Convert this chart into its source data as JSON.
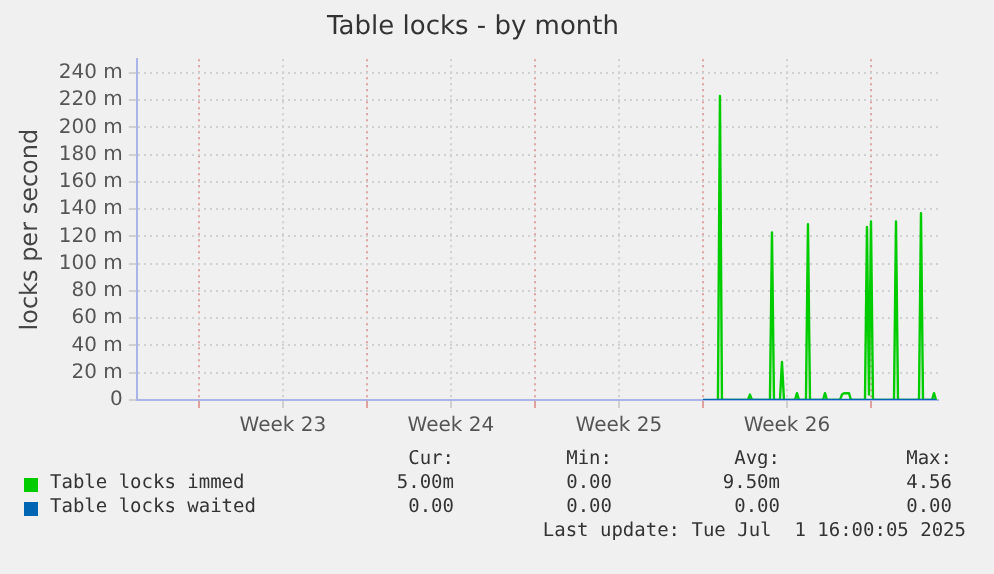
{
  "chart_data": {
    "type": "line",
    "title": "Table locks - by month",
    "ylabel": "locks per second",
    "xlim": [
      "2025-05-30T10:00",
      "2025-07-02T19:00"
    ],
    "xticks": [
      {
        "value": "2025-06-02",
        "label": null
      },
      {
        "value": "2025-06-05T12:00",
        "label": "Week 23"
      },
      {
        "value": "2025-06-09",
        "label": null
      },
      {
        "value": "2025-06-12T12:00",
        "label": "Week 24"
      },
      {
        "value": "2025-06-16",
        "label": null
      },
      {
        "value": "2025-06-19T12:00",
        "label": "Week 25"
      },
      {
        "value": "2025-06-23",
        "label": null
      },
      {
        "value": "2025-06-26T12:00",
        "label": "Week 26"
      },
      {
        "value": "2025-06-30",
        "label": null
      }
    ],
    "ylim": [
      0,
      250
    ],
    "yticks": [
      {
        "value": 0,
        "label": "0"
      },
      {
        "value": 20,
        "label": "20 m"
      },
      {
        "value": 40,
        "label": "40 m"
      },
      {
        "value": 60,
        "label": "60 m"
      },
      {
        "value": 80,
        "label": "80 m"
      },
      {
        "value": 100,
        "label": "100 m"
      },
      {
        "value": 120,
        "label": "120 m"
      },
      {
        "value": 140,
        "label": "140 m"
      },
      {
        "value": 160,
        "label": "160 m"
      },
      {
        "value": 180,
        "label": "180 m"
      },
      {
        "value": 200,
        "label": "200 m"
      },
      {
        "value": 220,
        "label": "220 m"
      },
      {
        "value": 240,
        "label": "240 m"
      }
    ],
    "grid": true,
    "legend": "bottom",
    "marker": "none",
    "line_style": "solid",
    "series": [
      {
        "name": "Table locks immed",
        "color": "#00cc00",
        "x": [
          "2025-06-23T15:00",
          "2025-06-23T17:00",
          "2025-06-23T19:00",
          "2025-06-24T21:00",
          "2025-06-24T23:00",
          "2025-06-25T01:00",
          "2025-06-25T19:00",
          "2025-06-25T21:00",
          "2025-06-25T23:00",
          "2025-06-26T05:00",
          "2025-06-26T07:00",
          "2025-06-26T09:00",
          "2025-06-26T20:00",
          "2025-06-26T22:00",
          "2025-06-27T00:00",
          "2025-06-27T07:00",
          "2025-06-27T09:00",
          "2025-06-27T11:00",
          "2025-06-28T00:00",
          "2025-06-28T02:00",
          "2025-06-28T04:00",
          "2025-06-28T17:00",
          "2025-06-28T19:00",
          "2025-06-28T21:00",
          "2025-06-29T02:00",
          "2025-06-29T04:00",
          "2025-06-29T18:00",
          "2025-06-29T20:00",
          "2025-06-29T22:00",
          "2025-06-30T00:00",
          "2025-06-30T02:00",
          "2025-06-30T23:00",
          "2025-07-01T01:00",
          "2025-07-01T03:00",
          "2025-07-02T00:00",
          "2025-07-02T02:00",
          "2025-07-02T04:00",
          "2025-07-02T13:00",
          "2025-07-02T15:00",
          "2025-07-02T17:00"
        ],
        "values": [
          0,
          223,
          0,
          0,
          4,
          0,
          0,
          123,
          0,
          0,
          28,
          0,
          0,
          5,
          0,
          0,
          129,
          0,
          0,
          5,
          0,
          0,
          4,
          5,
          5,
          0,
          0,
          127,
          4,
          131,
          0,
          0,
          131,
          0,
          0,
          137,
          0,
          0,
          5,
          0
        ]
      },
      {
        "name": "Table locks waited",
        "color": "#0066b3",
        "x": [
          "2025-06-23T00:00",
          "2025-07-02T17:00"
        ],
        "values": [
          0,
          0
        ]
      }
    ],
    "annotations": [
      "Cur:",
      "Min:",
      "Avg:",
      "Max:",
      "5.00m",
      "0.00",
      "9.50m",
      "4.56",
      "0.00",
      "0.00",
      "0.00",
      "0.00",
      "Last update: Tue Jul  1 16:00:05 2025"
    ]
  }
}
